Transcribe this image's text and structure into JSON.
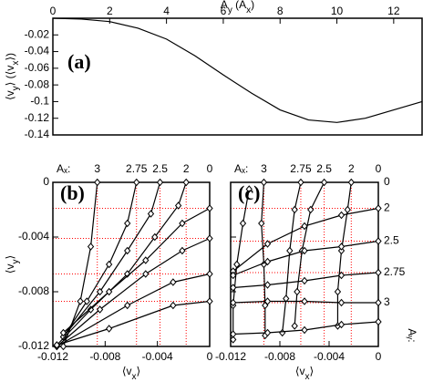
{
  "chart_data": [
    {
      "type": "line",
      "panel": "(a)",
      "xaxis_position": "top",
      "xlabel": [
        "A",
        "y",
        " (A",
        "x",
        ")"
      ],
      "ylabel": [
        "⟨v",
        "y",
        "⟩ (⟨v",
        "x",
        "⟩)"
      ],
      "xlim": [
        0,
        13
      ],
      "xticks": [
        0,
        2,
        4,
        6,
        8,
        10,
        12
      ],
      "ylim": [
        -0.14,
        0
      ],
      "yticks": [
        -0.02,
        -0.04,
        -0.06,
        -0.08,
        -0.1,
        -0.12,
        -0.14
      ],
      "series": [
        {
          "color": "#000000",
          "x": [
            0,
            1,
            2,
            3,
            4,
            5,
            6,
            7,
            8,
            9,
            10,
            11,
            12,
            13
          ],
          "values": [
            0,
            -0.001,
            -0.004,
            -0.012,
            -0.025,
            -0.045,
            -0.068,
            -0.09,
            -0.11,
            -0.122,
            -0.125,
            -0.12,
            -0.11,
            -0.1
          ]
        }
      ]
    },
    {
      "type": "line",
      "panel": "(b)",
      "xaxis_position": "bottom",
      "marker": "diamond",
      "xlabel": [
        "⟨v",
        "x",
        "⟩"
      ],
      "ylabel": [
        "⟨v",
        "y",
        "⟩"
      ],
      "top_title": "Aₓ:",
      "xlim": [
        -0.012,
        0
      ],
      "xticks": [
        -0.012,
        -0.008,
        -0.004,
        0
      ],
      "ylim": [
        -0.012,
        0
      ],
      "yticks": [
        0,
        -0.004,
        -0.008,
        -0.012
      ],
      "grid_color": "#ff0000",
      "xgrid": [
        {
          "value": -0.0086,
          "label": "3"
        },
        {
          "value": -0.0056,
          "label": "2.75"
        },
        {
          "value": -0.0038,
          "label": "2.5"
        },
        {
          "value": -0.0018,
          "label": "2"
        },
        {
          "value": 0,
          "label": "0"
        }
      ],
      "ygrid": [
        -0.0019,
        -0.0041,
        -0.0067,
        -0.0087
      ],
      "series": [
        {
          "color": "#000000",
          "x": [
            -0.0086,
            -0.0091,
            -0.0099,
            -0.0112
          ],
          "values": [
            0,
            -0.0047,
            -0.0087,
            -0.012
          ]
        },
        {
          "color": "#000000",
          "x": [
            -0.0056,
            -0.0063,
            -0.0077,
            -0.0094,
            -0.0112
          ],
          "values": [
            0,
            -0.003,
            -0.006,
            -0.0087,
            -0.0113
          ]
        },
        {
          "color": "#000000",
          "x": [
            -0.0038,
            -0.0045,
            -0.0063,
            -0.0084,
            -0.0112
          ],
          "values": [
            0,
            -0.0023,
            -0.005,
            -0.008,
            -0.0113
          ]
        },
        {
          "color": "#000000",
          "x": [
            -0.0018,
            -0.0024,
            -0.0042,
            -0.0063,
            -0.0091,
            -0.0117
          ],
          "values": [
            0,
            -0.0017,
            -0.004,
            -0.0067,
            -0.0093,
            -0.0119
          ]
        },
        {
          "color": "#000000",
          "x": [
            0,
            -0.0021,
            -0.0049,
            -0.0077,
            -0.0112
          ],
          "values": [
            -0.0019,
            -0.003,
            -0.0057,
            -0.008,
            -0.011
          ]
        },
        {
          "color": "#000000",
          "x": [
            0,
            -0.0021,
            -0.0049,
            -0.0084,
            -0.0117
          ],
          "values": [
            -0.0041,
            -0.005,
            -0.0067,
            -0.0093,
            -0.012
          ]
        },
        {
          "color": "#000000",
          "x": [
            0,
            -0.0028,
            -0.0063,
            -0.0117
          ],
          "values": [
            -0.0067,
            -0.0073,
            -0.009,
            -0.012
          ]
        },
        {
          "color": "#000000",
          "x": [
            0,
            -0.0028,
            -0.0077,
            -0.0117
          ],
          "values": [
            -0.0087,
            -0.009,
            -0.0107,
            -0.0119
          ]
        }
      ]
    },
    {
      "type": "line",
      "panel": "(c)",
      "xaxis_position": "bottom",
      "marker": "diamond",
      "xlabel": [
        "⟨v",
        "x",
        "⟩"
      ],
      "top_title": "Aₓ:",
      "right_title": "Aᵧ:",
      "show_ytick_labels": false,
      "xlim": [
        -0.012,
        0
      ],
      "xticks": [
        -0.012,
        -0.008,
        -0.004,
        0
      ],
      "ylim": [
        -0.012,
        0
      ],
      "yticks": [
        0,
        -0.004,
        -0.008,
        -0.012
      ],
      "grid_color": "#ff0000",
      "xgrid": [
        {
          "value": -0.0093,
          "label": "3"
        },
        {
          "value": -0.0063,
          "label": "2.75"
        },
        {
          "value": -0.0044,
          "label": "2.5"
        },
        {
          "value": -0.0022,
          "label": "2"
        },
        {
          "value": 0,
          "label": "0"
        }
      ],
      "ygrid": [
        {
          "value": 0,
          "label": "0"
        },
        {
          "value": -0.0019,
          "label": "2"
        },
        {
          "value": -0.0043,
          "label": "2.5"
        },
        {
          "value": -0.0066,
          "label": "2.75"
        },
        {
          "value": -0.0088,
          "label": "3"
        }
      ],
      "series": [
        {
          "color": "#000000",
          "x": [
            -0.0105,
            -0.011,
            -0.0115,
            -0.0118,
            -0.0118
          ],
          "values": [
            -0.0005,
            -0.003,
            -0.006,
            -0.009,
            -0.0115
          ]
        },
        {
          "color": "#000000",
          "x": [
            -0.0093,
            -0.0095,
            -0.0093,
            -0.0092,
            -0.0092
          ],
          "values": [
            0,
            -0.003,
            -0.006,
            -0.009,
            -0.0112
          ]
        },
        {
          "color": "#000000",
          "x": [
            -0.0063,
            -0.0068,
            -0.0072,
            -0.0075,
            -0.0078
          ],
          "values": [
            0,
            -0.002,
            -0.005,
            -0.0085,
            -0.011
          ]
        },
        {
          "color": "#000000",
          "x": [
            -0.0044,
            -0.0055,
            -0.0062,
            -0.0066,
            -0.0068
          ],
          "values": [
            0,
            -0.002,
            -0.005,
            -0.008,
            -0.0105
          ]
        },
        {
          "color": "#000000",
          "x": [
            -0.0022,
            -0.0025,
            -0.003,
            -0.0033,
            -0.0033
          ],
          "values": [
            0,
            -0.002,
            -0.005,
            -0.008,
            -0.0105
          ]
        },
        {
          "color": "#000000",
          "x": [
            0,
            -0.003,
            -0.006,
            -0.009,
            -0.0118
          ],
          "values": [
            -0.0019,
            -0.0024,
            -0.0032,
            -0.0045,
            -0.0065
          ]
        },
        {
          "color": "#000000",
          "x": [
            0,
            -0.003,
            -0.006,
            -0.009,
            -0.0118
          ],
          "values": [
            -0.0043,
            -0.0047,
            -0.005,
            -0.0058,
            -0.0068
          ]
        },
        {
          "color": "#000000",
          "x": [
            0,
            -0.003,
            -0.006,
            -0.009,
            -0.0118
          ],
          "values": [
            -0.0066,
            -0.0068,
            -0.0072,
            -0.0075,
            -0.0077
          ]
        },
        {
          "color": "#000000",
          "x": [
            0,
            -0.003,
            -0.006,
            -0.009,
            -0.0118
          ],
          "values": [
            -0.0088,
            -0.0088,
            -0.0087,
            -0.0087,
            -0.0088
          ]
        },
        {
          "color": "#000000",
          "x": [
            0,
            -0.003,
            -0.006,
            -0.009,
            -0.0118
          ],
          "values": [
            -0.0102,
            -0.0104,
            -0.0108,
            -0.011,
            -0.0111
          ]
        }
      ]
    }
  ]
}
